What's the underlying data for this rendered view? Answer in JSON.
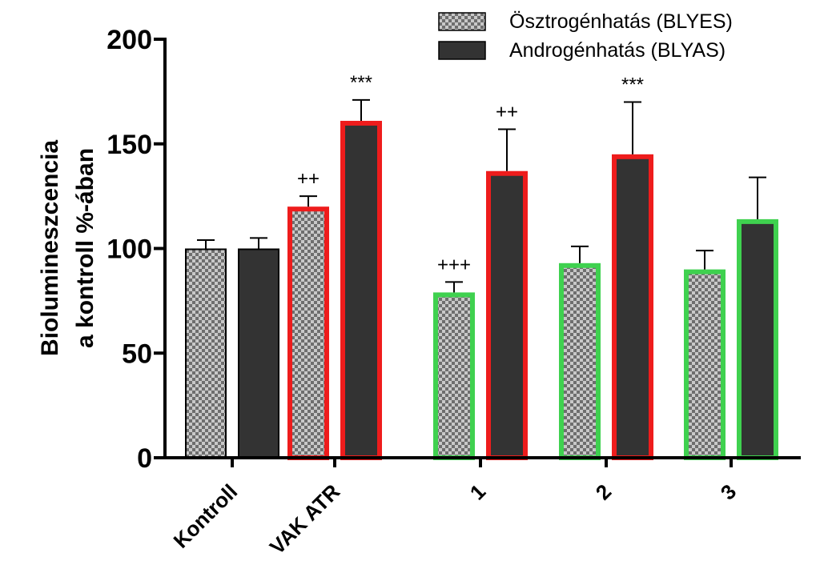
{
  "chart_data": {
    "type": "bar",
    "ylabel_lines": [
      "Biolumineszcencia",
      "a kontroll %-ában"
    ],
    "ylim": [
      0,
      200
    ],
    "yticks": [
      0,
      50,
      100,
      150,
      200
    ],
    "categories": [
      "Kontroll",
      "VAK ATR",
      "1",
      "2",
      "3"
    ],
    "legend_position": "top-right",
    "series": [
      {
        "name": "Ösztrogénhatás (BLYES)",
        "pattern": "checkered-gray",
        "values": [
          100,
          120,
          79,
          93,
          90
        ],
        "errors": [
          4,
          5,
          5,
          8,
          9
        ],
        "outline_colors": [
          "#000000",
          "#ee1c1c",
          "#3fd14f",
          "#3fd14f",
          "#3fd14f"
        ],
        "annotations": [
          "",
          "++",
          "+++",
          "",
          ""
        ]
      },
      {
        "name": "Androgénhatás (BLYAS)",
        "fill": "#333333",
        "values": [
          100,
          161,
          137,
          145,
          114
        ],
        "errors": [
          5,
          10,
          20,
          25,
          20
        ],
        "outline_colors": [
          "#000000",
          "#ee1c1c",
          "#ee1c1c",
          "#ee1c1c",
          "#3fd14f"
        ],
        "annotations": [
          "",
          "***",
          "++",
          "***",
          ""
        ]
      }
    ]
  }
}
